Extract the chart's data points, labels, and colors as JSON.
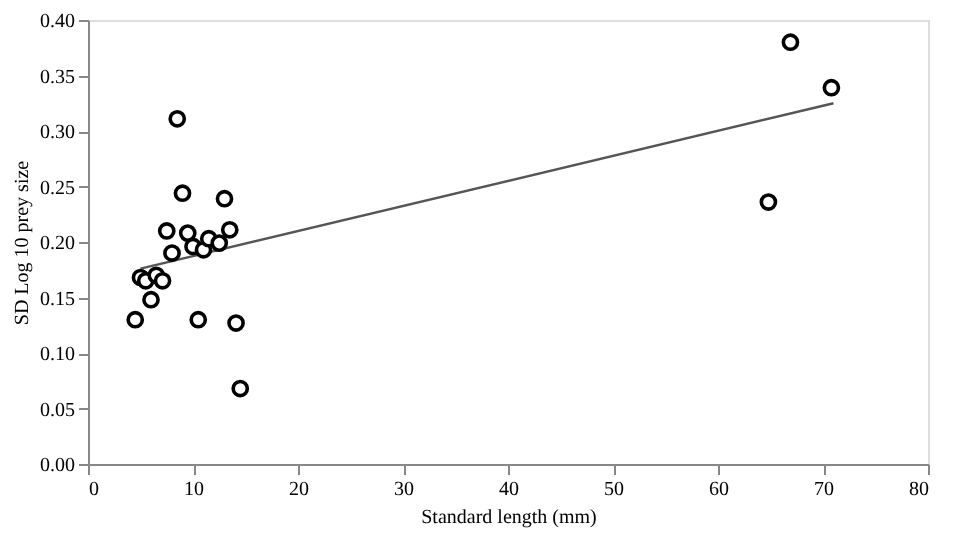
{
  "chart_data": {
    "type": "scatter",
    "xlabel": "Standard length (mm)",
    "ylabel": "SD Log 10 prey size",
    "xlim": [
      0,
      80
    ],
    "xticks": [
      0,
      10,
      20,
      30,
      40,
      50,
      60,
      70,
      80
    ],
    "ylim": [
      0,
      0.4
    ],
    "yticks": [
      {
        "value": 0,
        "label": "0.00"
      },
      0.05,
      {
        "value": 0.1,
        "label": "0.10"
      },
      0.15,
      {
        "value": 0.2,
        "label": "0.20"
      },
      0.25,
      {
        "value": 0.3,
        "label": "0.30"
      },
      0.35,
      {
        "value": 0.4,
        "label": "0.40"
      }
    ],
    "grid": false,
    "series": [
      {
        "color": "#000000",
        "marker": "circle",
        "x": [
          4.5,
          5.0,
          5.5,
          6.0,
          6.5,
          7.1,
          7.5,
          8.0,
          8.5,
          9.0,
          9.5,
          10.0,
          10.5,
          11.0,
          11.5,
          12.5,
          13.0,
          13.5,
          14.1,
          14.5,
          64.8,
          66.9,
          70.8
        ],
        "values": [
          0.13,
          0.168,
          0.165,
          0.148,
          0.17,
          0.165,
          0.21,
          0.19,
          0.311,
          0.244,
          0.208,
          0.196,
          0.13,
          0.193,
          0.203,
          0.199,
          0.239,
          0.211,
          0.127,
          0.068,
          0.236,
          0.38,
          0.339
        ]
      },
      {
        "type": "line",
        "marker": "none",
        "color": "#555555",
        "x": [
          5,
          71
        ],
        "values": [
          0.176,
          0.325
        ]
      }
    ]
  }
}
